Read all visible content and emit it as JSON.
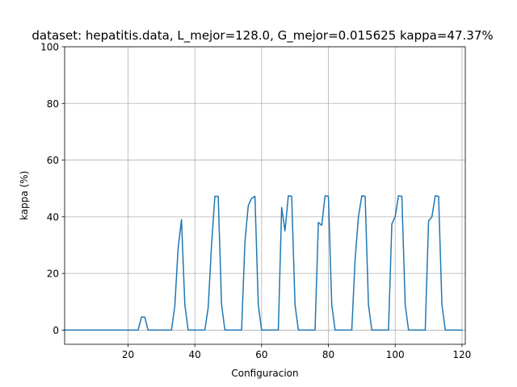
{
  "chart_data": {
    "type": "line",
    "title": "dataset: hepatitis.data, L_mejor=128.0, G_mejor=0.015625 kappa=47.37%",
    "xlabel": "Configuracion",
    "ylabel": "kappa (%)",
    "xlim": [
      1,
      121
    ],
    "ylim": [
      -5,
      100
    ],
    "xticks": [
      20,
      40,
      60,
      80,
      100,
      120
    ],
    "xtick_labels": [
      "20",
      "40",
      "60",
      "80",
      "100",
      "120"
    ],
    "yticks": [
      0,
      20,
      40,
      60,
      80,
      100
    ],
    "ytick_labels": [
      "0",
      "20",
      "40",
      "60",
      "80",
      "100"
    ],
    "grid": true,
    "color": "#1f77b4",
    "series": [
      {
        "x": [
          1,
          2,
          3,
          4,
          5,
          6,
          7,
          8,
          9,
          10,
          11,
          12,
          13,
          14,
          15,
          16,
          17,
          18,
          19,
          20,
          21,
          22,
          23,
          24,
          25,
          26,
          27,
          28,
          29,
          30,
          31,
          32,
          33,
          34,
          35,
          36,
          37,
          38,
          39,
          40,
          41,
          42,
          43,
          44,
          45,
          46,
          47,
          48,
          49,
          50,
          51,
          52,
          53,
          54,
          55,
          56,
          57,
          58,
          59,
          60,
          61,
          62,
          63,
          64,
          65,
          66,
          67,
          68,
          69,
          70,
          71,
          72,
          73,
          74,
          75,
          76,
          77,
          78,
          79,
          80,
          81,
          82,
          83,
          84,
          85,
          86,
          87,
          88,
          89,
          90,
          91,
          92,
          93,
          94,
          95,
          96,
          97,
          98,
          99,
          100,
          101,
          102,
          103,
          104,
          105,
          106,
          107,
          108,
          109,
          110,
          111,
          112,
          113,
          114,
          115,
          116,
          117,
          118,
          119,
          120
        ],
        "values": [
          0,
          0,
          0,
          0,
          0,
          0,
          0,
          0,
          0,
          0,
          0,
          0,
          0,
          0,
          0,
          0,
          0,
          0,
          0,
          0,
          0,
          0,
          0,
          4.6,
          4.6,
          0,
          0,
          0,
          0,
          0,
          0,
          0,
          0,
          8.5,
          29,
          39,
          9,
          0,
          0,
          0,
          0,
          0,
          0,
          8,
          30,
          47.2,
          47.2,
          9,
          0,
          0,
          0,
          0,
          0,
          0,
          31,
          44,
          46.5,
          47.2,
          9,
          0,
          0,
          0,
          0,
          0,
          0,
          43.3,
          35,
          47.4,
          47.2,
          9,
          0,
          0,
          0,
          0,
          0,
          0,
          38,
          37,
          47.4,
          47.2,
          9,
          0,
          0,
          0,
          0,
          0,
          0,
          25,
          40,
          47.4,
          47.2,
          9,
          0,
          0,
          0,
          0,
          0,
          0,
          37.5,
          40,
          47.4,
          47.2,
          9,
          0,
          0,
          0,
          0,
          0,
          0,
          38.5,
          40,
          47.4,
          47.2,
          9,
          0,
          0,
          0,
          0,
          0,
          0
        ]
      }
    ]
  }
}
